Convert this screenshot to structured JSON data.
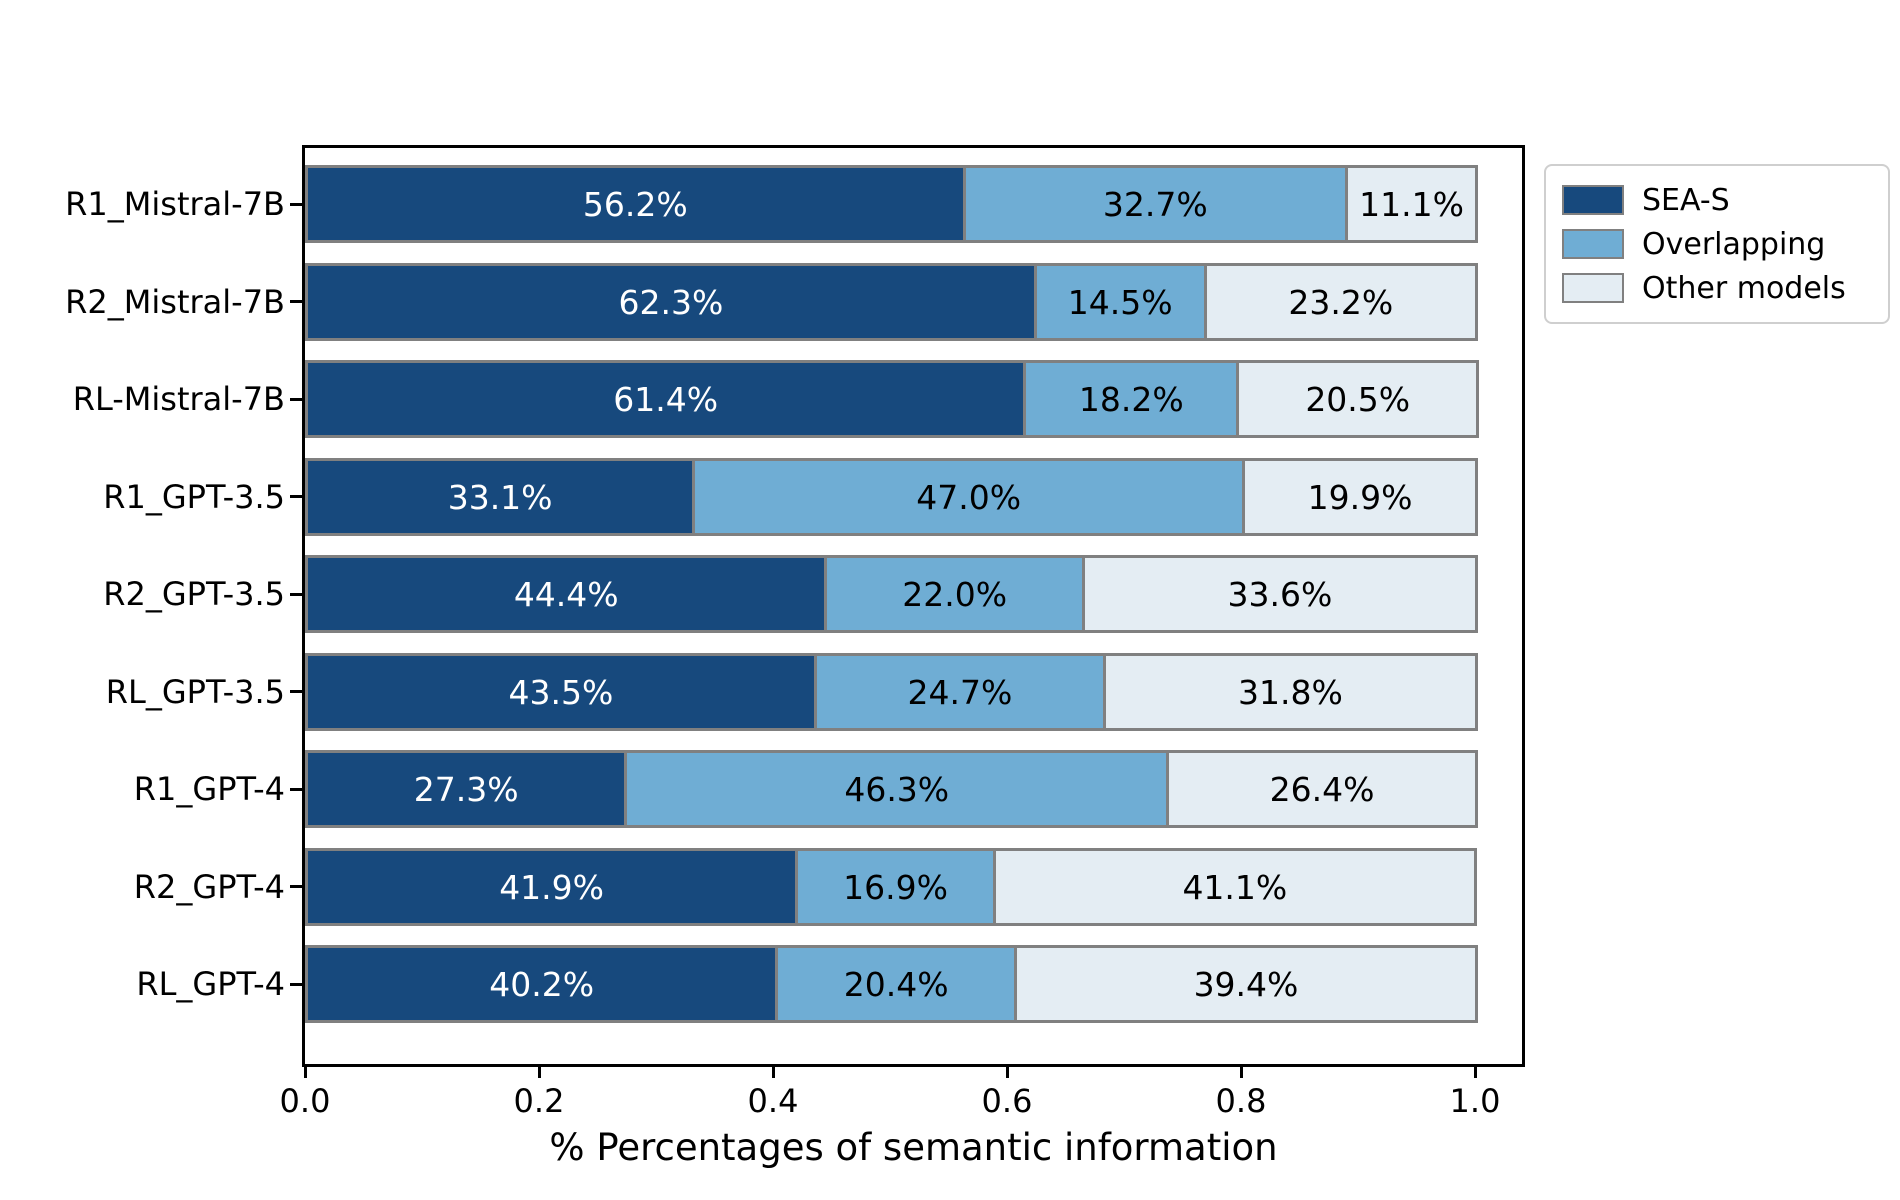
{
  "chart_data": {
    "type": "bar",
    "orientation": "horizontal-stacked",
    "title": "",
    "xlabel": "% Percentages of semantic information",
    "ylabel": "",
    "categories": [
      "R1_Mistral-7B",
      "R2_Mistral-7B",
      "RL-Mistral-7B",
      "R1_GPT-3.5",
      "R2_GPT-3.5",
      "RL_GPT-3.5",
      "R1_GPT-4",
      "R2_GPT-4",
      "RL_GPT-4"
    ],
    "series": [
      {
        "name": "SEA-S",
        "color": "#17497d",
        "label_color": "#ffffff",
        "values": [
          56.2,
          62.3,
          61.4,
          33.1,
          44.4,
          43.5,
          27.3,
          41.9,
          40.2
        ]
      },
      {
        "name": "Overlapping",
        "color": "#6fadd4",
        "label_color": "#000000",
        "values": [
          32.7,
          14.5,
          18.2,
          47.0,
          22.0,
          24.7,
          46.3,
          16.9,
          20.4
        ]
      },
      {
        "name": "Other models",
        "color": "#e4edf3",
        "label_color": "#000000",
        "values": [
          11.1,
          23.2,
          20.5,
          19.9,
          33.6,
          31.8,
          26.4,
          41.1,
          39.4
        ]
      }
    ],
    "value_suffix": "%",
    "x_ticks": [
      "0.0",
      "0.2",
      "0.4",
      "0.6",
      "0.8",
      "1.0"
    ],
    "xlim": [
      0,
      1.045
    ],
    "grid": false,
    "legend_position": "top-right-outside",
    "bar_edge_color": "#808080",
    "frame_color": "#000000"
  }
}
